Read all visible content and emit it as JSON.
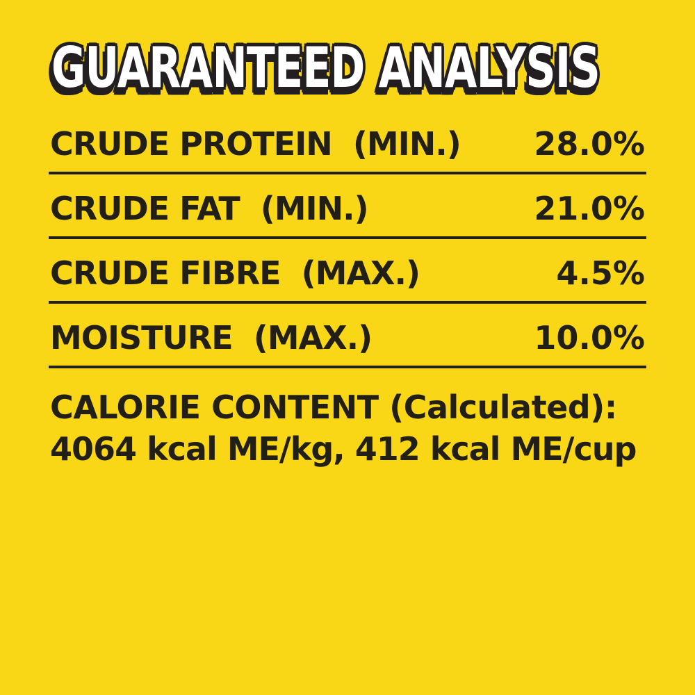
{
  "panel": {
    "background_color": "#f9d616",
    "text_color": "#221f16",
    "title_fill_color": "#ffffff",
    "title_outline_color": "#231f20"
  },
  "title": "GUARANTEED ANALYSIS",
  "table": {
    "rows": [
      {
        "label": "CRUDE PROTEIN  (MIN.)",
        "value": "28.0%"
      },
      {
        "label": "CRUDE FAT  (MIN.)",
        "value": "21.0%"
      },
      {
        "label": "CRUDE FIBRE  (MAX.)",
        "value": "4.5%"
      },
      {
        "label": "MOISTURE  (MAX.)",
        "value": "10.0%"
      }
    ]
  },
  "calorie": {
    "heading": "CALORIE CONTENT (Calculated):",
    "values": "4064 kcal ME/kg, 412 kcal ME/cup"
  }
}
